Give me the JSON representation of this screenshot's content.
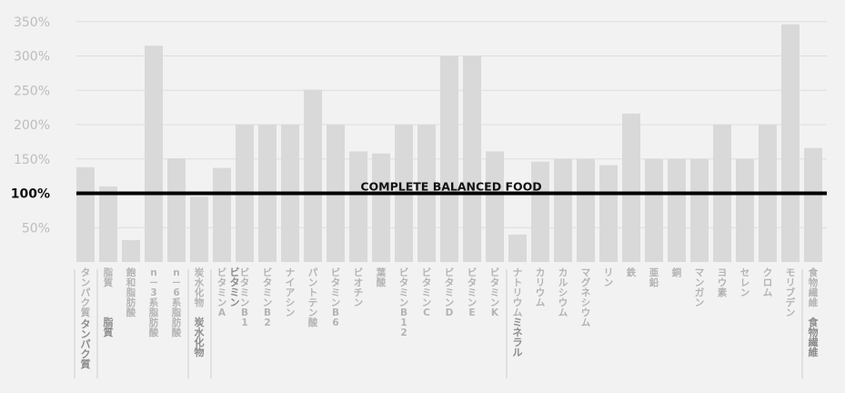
{
  "chart_data": {
    "type": "bar",
    "categories": [
      "タンパク質",
      "脂質",
      "飽和脂肪酸",
      "n－3系脂肪酸",
      "n－6系脂肪酸",
      "炭水化物",
      "ビタミンA",
      "ビタミンB1",
      "ビタミンB2",
      "ナイアシン",
      "パントテン酸",
      "ビタミンB6",
      "ビオチン",
      "葉酸",
      "ビタミンB12",
      "ビタミンC",
      "ビタミンD",
      "ビタミンE",
      "ビタミンK",
      "ナトリウム",
      "カリウム",
      "カルシウム",
      "マグネシウム",
      "リン",
      "鉄",
      "亜鉛",
      "銅",
      "マンガン",
      "ヨウ素",
      "セレン",
      "クロム",
      "モリブデン",
      "食物繊維"
    ],
    "values": [
      138,
      110,
      32,
      315,
      151,
      95,
      137,
      200,
      200,
      200,
      251,
      200,
      161,
      158,
      200,
      200,
      300,
      300,
      161,
      40,
      146,
      150,
      150,
      141,
      216,
      150,
      150,
      150,
      200,
      150,
      200,
      346,
      166
    ],
    "groups": [
      {
        "label": "タンパク質",
        "start": 0,
        "end": 0
      },
      {
        "label": "脂質",
        "start": 1,
        "end": 4
      },
      {
        "label": "炭水化物",
        "start": 5,
        "end": 5
      },
      {
        "label": "ビタミン",
        "start": 6,
        "end": 18
      },
      {
        "label": "ミネラル",
        "start": 19,
        "end": 31
      },
      {
        "label": "食物繊維",
        "start": 32,
        "end": 32
      }
    ],
    "yticks": [
      "50%",
      "100%",
      "150%",
      "200%",
      "250%",
      "300%",
      "350%"
    ],
    "ytick_values": [
      50,
      100,
      150,
      200,
      250,
      300,
      350
    ],
    "ylim": [
      0,
      370
    ],
    "reference_line": {
      "value": 100,
      "label": "COMPLETE BALANCED FOOD"
    },
    "grid": true,
    "colors": {
      "bar": "#d9d9d9",
      "grid": "#dddddd",
      "reference": "#000000",
      "background": "#f2f2f2"
    }
  }
}
